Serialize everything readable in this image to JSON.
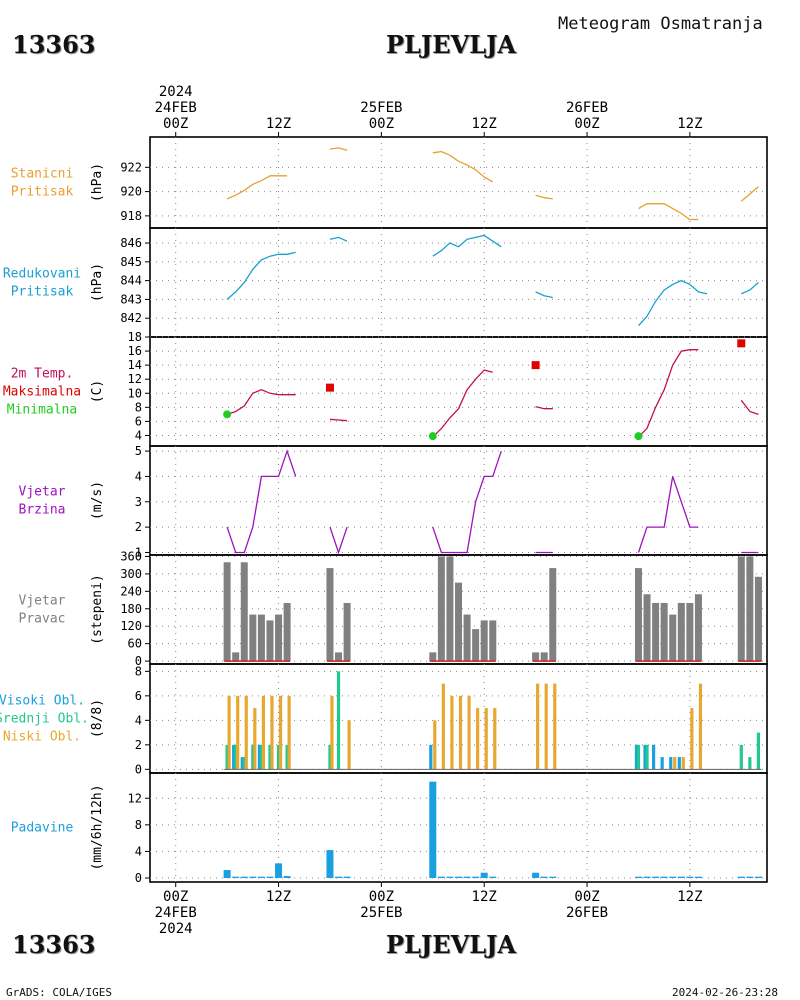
{
  "header": {
    "station_id": "13363",
    "station_name": "PLJEVLJA",
    "subtitle": "Meteogram Osmatranja"
  },
  "footer": {
    "left": "GrADS: COLA/IGES",
    "right": "2024-02-26-23:28"
  },
  "time_axis": {
    "year": "2024",
    "days": [
      {
        "label": "24FEB",
        "hour": 0
      },
      {
        "label": "25FEB",
        "hour": 24
      },
      {
        "label": "26FEB",
        "hour": 48
      }
    ],
    "ticks": [
      {
        "label": "00Z",
        "hour": 0
      },
      {
        "label": "12Z",
        "hour": 12
      },
      {
        "label": "00Z",
        "hour": 24
      },
      {
        "label": "12Z",
        "hour": 36
      },
      {
        "label": "00Z",
        "hour": 48
      },
      {
        "label": "12Z",
        "hour": 60
      }
    ],
    "range": [
      -3,
      69
    ]
  },
  "colors": {
    "pressure": "#e8a030",
    "reduced": "#1aa0d0",
    "temp": "#c0105a",
    "tmax": "#e00000",
    "tmin": "#20cc20",
    "wind": "#a010c0",
    "dir_bar": "#808080",
    "dir_base": "#d02020",
    "high_cloud": "#1aa0e0",
    "mid_cloud": "#20c890",
    "low_cloud": "#e8a830",
    "precip": "#1aa0e0"
  },
  "chart_data": [
    {
      "id": "station-pressure",
      "type": "line",
      "labels": [
        "Stanicni",
        "Pritisak"
      ],
      "unit": "(hPa)",
      "ylim": [
        917,
        924.5
      ],
      "yticks": [
        918,
        920,
        922
      ],
      "color_key": "pressure",
      "segments": [
        [
          [
            6,
            919.4
          ],
          [
            7,
            919.7
          ],
          [
            8,
            920.1
          ],
          [
            9,
            920.6
          ],
          [
            10,
            920.9
          ],
          [
            11,
            921.3
          ],
          [
            12,
            921.3
          ],
          [
            13,
            921.3
          ]
        ],
        [
          [
            18,
            923.5
          ],
          [
            19,
            923.6
          ],
          [
            20,
            923.4
          ]
        ],
        [
          [
            30,
            923.2
          ],
          [
            31,
            923.3
          ],
          [
            32,
            923.0
          ],
          [
            33,
            922.5
          ],
          [
            34,
            922.2
          ],
          [
            35,
            921.8
          ],
          [
            36,
            921.2
          ],
          [
            37,
            920.8
          ]
        ],
        [
          [
            42,
            919.7
          ],
          [
            43,
            919.5
          ],
          [
            44,
            919.4
          ]
        ],
        [
          [
            54,
            918.6
          ],
          [
            55,
            919.0
          ],
          [
            56,
            919.0
          ],
          [
            57,
            919.0
          ],
          [
            58,
            918.6
          ],
          [
            59,
            918.2
          ],
          [
            60,
            917.7
          ],
          [
            61,
            917.7
          ]
        ],
        [
          [
            66,
            919.2
          ],
          [
            67,
            919.8
          ],
          [
            68,
            920.4
          ]
        ]
      ]
    },
    {
      "id": "reduced-pressure",
      "type": "line",
      "labels": [
        "Redukovani",
        "Pritisak"
      ],
      "unit": "(hPa)",
      "ylim": [
        841,
        846.8
      ],
      "yticks": [
        842,
        843,
        844,
        845,
        846
      ],
      "color_key": "reduced",
      "segments": [
        [
          [
            6,
            843.0
          ],
          [
            7,
            843.4
          ],
          [
            8,
            843.9
          ],
          [
            9,
            844.6
          ],
          [
            10,
            845.1
          ],
          [
            11,
            845.3
          ],
          [
            12,
            845.4
          ],
          [
            13,
            845.4
          ],
          [
            14,
            845.5
          ]
        ],
        [
          [
            18,
            846.2
          ],
          [
            19,
            846.3
          ],
          [
            20,
            846.1
          ]
        ],
        [
          [
            30,
            845.3
          ],
          [
            31,
            845.6
          ],
          [
            32,
            846.0
          ],
          [
            33,
            845.8
          ],
          [
            34,
            846.2
          ],
          [
            35,
            846.3
          ],
          [
            36,
            846.4
          ],
          [
            37,
            846.1
          ],
          [
            38,
            845.8
          ]
        ],
        [
          [
            42,
            843.4
          ],
          [
            43,
            843.2
          ],
          [
            44,
            843.1
          ]
        ],
        [
          [
            54,
            841.6
          ],
          [
            55,
            842.1
          ],
          [
            56,
            842.9
          ],
          [
            57,
            843.5
          ],
          [
            58,
            843.8
          ],
          [
            59,
            844.0
          ],
          [
            60,
            843.8
          ],
          [
            61,
            843.4
          ],
          [
            62,
            843.3
          ]
        ],
        [
          [
            66,
            843.3
          ],
          [
            67,
            843.5
          ],
          [
            68,
            843.9
          ]
        ]
      ]
    },
    {
      "id": "temperature",
      "type": "line",
      "labels": [
        "2m Temp.",
        "Maksimalna",
        "Minimalna"
      ],
      "label_color_keys": [
        "temp",
        "tmax",
        "tmin"
      ],
      "unit": "(C)",
      "ylim": [
        2.5,
        18
      ],
      "yticks": [
        4,
        6,
        8,
        10,
        12,
        14,
        16,
        18
      ],
      "color_key": "temp",
      "segments": [
        [
          [
            6,
            7.0
          ],
          [
            7,
            7.4
          ],
          [
            8,
            8.2
          ],
          [
            9,
            10.0
          ],
          [
            10,
            10.5
          ],
          [
            11,
            10.0
          ],
          [
            12,
            9.8
          ],
          [
            13,
            9.8
          ],
          [
            14,
            9.8
          ]
        ],
        [
          [
            18,
            6.3
          ],
          [
            19,
            6.2
          ],
          [
            20,
            6.1
          ]
        ],
        [
          [
            30,
            3.8
          ],
          [
            31,
            5.0
          ],
          [
            32,
            6.5
          ],
          [
            33,
            7.8
          ],
          [
            34,
            10.5
          ],
          [
            35,
            12.0
          ],
          [
            36,
            13.3
          ],
          [
            37,
            13.0
          ]
        ],
        [
          [
            42,
            8.1
          ],
          [
            43,
            7.8
          ],
          [
            44,
            7.8
          ]
        ],
        [
          [
            54,
            3.8
          ],
          [
            55,
            5.0
          ],
          [
            56,
            8.0
          ],
          [
            57,
            10.5
          ],
          [
            58,
            14.0
          ],
          [
            59,
            16.0
          ],
          [
            60,
            16.2
          ],
          [
            61,
            16.2
          ]
        ],
        [
          [
            66,
            9.0
          ],
          [
            67,
            7.4
          ],
          [
            68,
            7.0
          ]
        ]
      ],
      "maxima": [
        [
          18,
          10.8
        ],
        [
          42,
          14.0
        ],
        [
          66,
          17.1
        ]
      ],
      "minima": [
        [
          6,
          7.0
        ],
        [
          30,
          3.9
        ],
        [
          54,
          3.9
        ]
      ]
    },
    {
      "id": "wind-speed",
      "type": "line",
      "labels": [
        "Vjetar",
        "Brzina"
      ],
      "unit": "(m/s)",
      "ylim": [
        0.9,
        5.2
      ],
      "yticks": [
        1,
        2,
        3,
        4,
        5
      ],
      "color_key": "wind",
      "segments": [
        [
          [
            6,
            2
          ],
          [
            7,
            1
          ],
          [
            8,
            1
          ],
          [
            9,
            2
          ],
          [
            10,
            4
          ],
          [
            11,
            4
          ],
          [
            12,
            4
          ],
          [
            13,
            5
          ],
          [
            14,
            4
          ]
        ],
        [
          [
            18,
            2
          ],
          [
            19,
            1
          ],
          [
            20,
            2
          ]
        ],
        [
          [
            30,
            2
          ],
          [
            31,
            1
          ],
          [
            32,
            1
          ],
          [
            33,
            1
          ],
          [
            34,
            1
          ],
          [
            35,
            3
          ],
          [
            36,
            4
          ],
          [
            37,
            4
          ],
          [
            38,
            5
          ]
        ],
        [
          [
            42,
            1
          ],
          [
            43,
            1
          ],
          [
            44,
            1
          ]
        ],
        [
          [
            54,
            1
          ],
          [
            55,
            2
          ],
          [
            56,
            2
          ],
          [
            57,
            2
          ],
          [
            58,
            4
          ],
          [
            59,
            3
          ],
          [
            60,
            2
          ],
          [
            61,
            2
          ]
        ],
        [
          [
            66,
            1
          ],
          [
            67,
            1
          ],
          [
            68,
            1
          ]
        ]
      ]
    },
    {
      "id": "wind-direction",
      "type": "bar",
      "labels": [
        "Vjetar",
        "Pravac"
      ],
      "unit": "(stepeni)",
      "ylim": [
        -10,
        365
      ],
      "yticks": [
        0,
        60,
        120,
        180,
        240,
        300,
        360
      ],
      "color_key": "dir_bar",
      "bars": [
        [
          6,
          340
        ],
        [
          7,
          30
        ],
        [
          8,
          340
        ],
        [
          9,
          160
        ],
        [
          10,
          160
        ],
        [
          11,
          140
        ],
        [
          12,
          160
        ],
        [
          13,
          200
        ],
        [
          18,
          320
        ],
        [
          19,
          30
        ],
        [
          20,
          200
        ],
        [
          30,
          30
        ],
        [
          31,
          360
        ],
        [
          32,
          360
        ],
        [
          33,
          270
        ],
        [
          34,
          160
        ],
        [
          35,
          110
        ],
        [
          36,
          140
        ],
        [
          37,
          140
        ],
        [
          42,
          30
        ],
        [
          43,
          30
        ],
        [
          44,
          320
        ],
        [
          54,
          320
        ],
        [
          55,
          230
        ],
        [
          56,
          200
        ],
        [
          57,
          200
        ],
        [
          58,
          160
        ],
        [
          59,
          200
        ],
        [
          60,
          200
        ],
        [
          61,
          230
        ],
        [
          66,
          360
        ],
        [
          67,
          360
        ],
        [
          68,
          290
        ]
      ]
    },
    {
      "id": "clouds",
      "type": "bar",
      "labels": [
        "Visoki Obl.",
        "Srednji Obl.",
        "Niski Obl."
      ],
      "label_color_keys": [
        "high_cloud",
        "mid_cloud",
        "low_cloud"
      ],
      "unit": "(8/8)",
      "ylim": [
        -0.3,
        8.6
      ],
      "yticks": [
        0,
        2,
        4,
        6,
        8
      ],
      "high": [
        [
          6,
          0
        ],
        [
          7,
          2
        ],
        [
          8,
          1
        ],
        [
          9,
          0
        ],
        [
          10,
          2
        ],
        [
          11,
          0
        ],
        [
          12,
          0
        ],
        [
          13,
          0
        ],
        [
          18,
          0
        ],
        [
          19,
          0
        ],
        [
          20,
          0
        ],
        [
          30,
          2
        ],
        [
          54,
          2
        ],
        [
          55,
          2
        ],
        [
          56,
          2
        ],
        [
          57,
          1
        ],
        [
          58,
          1
        ],
        [
          59,
          1
        ],
        [
          60,
          0
        ],
        [
          61,
          0
        ],
        [
          66,
          0
        ],
        [
          67,
          0
        ],
        [
          68,
          0
        ]
      ],
      "mid": [
        [
          6,
          2
        ],
        [
          7,
          2
        ],
        [
          8,
          1
        ],
        [
          9,
          2
        ],
        [
          10,
          2
        ],
        [
          11,
          2
        ],
        [
          12,
          2
        ],
        [
          13,
          2
        ],
        [
          18,
          2
        ],
        [
          19,
          8
        ],
        [
          20,
          0
        ],
        [
          30,
          0
        ],
        [
          54,
          2
        ],
        [
          55,
          2
        ],
        [
          56,
          0
        ],
        [
          57,
          0
        ],
        [
          58,
          0
        ],
        [
          59,
          0
        ],
        [
          60,
          0
        ],
        [
          61,
          0
        ],
        [
          66,
          2
        ],
        [
          67,
          1
        ],
        [
          68,
          3
        ]
      ],
      "low": [
        [
          6,
          6
        ],
        [
          7,
          6
        ],
        [
          8,
          6
        ],
        [
          9,
          5
        ],
        [
          10,
          6
        ],
        [
          11,
          6
        ],
        [
          12,
          6
        ],
        [
          13,
          6
        ],
        [
          18,
          6
        ],
        [
          19,
          0
        ],
        [
          20,
          4
        ],
        [
          30,
          4
        ],
        [
          31,
          7
        ],
        [
          32,
          6
        ],
        [
          33,
          6
        ],
        [
          34,
          6
        ],
        [
          35,
          5
        ],
        [
          36,
          5
        ],
        [
          37,
          5
        ],
        [
          42,
          7
        ],
        [
          43,
          7
        ],
        [
          44,
          7
        ],
        [
          54,
          0
        ],
        [
          55,
          0
        ],
        [
          56,
          0
        ],
        [
          57,
          0
        ],
        [
          58,
          1
        ],
        [
          59,
          1
        ],
        [
          60,
          5
        ],
        [
          61,
          7
        ]
      ]
    },
    {
      "id": "precipitation",
      "type": "bar",
      "labels": [
        "Padavine"
      ],
      "unit": "(mm/6h/12h)",
      "ylim": [
        -0.6,
        15.8
      ],
      "yticks": [
        0,
        4,
        8,
        12
      ],
      "color_key": "precip",
      "bars": [
        [
          6,
          1.2
        ],
        [
          7,
          0.2
        ],
        [
          8,
          0.2
        ],
        [
          9,
          0.2
        ],
        [
          10,
          0.2
        ],
        [
          11,
          0.2
        ],
        [
          12,
          2.2
        ],
        [
          13,
          0.3
        ],
        [
          18,
          4.2
        ],
        [
          19,
          0.2
        ],
        [
          20,
          0.2
        ],
        [
          30,
          14.5
        ],
        [
          31,
          0.2
        ],
        [
          32,
          0.2
        ],
        [
          33,
          0.2
        ],
        [
          34,
          0.2
        ],
        [
          35,
          0.2
        ],
        [
          36,
          0.8
        ],
        [
          37,
          0.2
        ],
        [
          42,
          0.8
        ],
        [
          43,
          0.2
        ],
        [
          44,
          0.2
        ],
        [
          54,
          0.2
        ],
        [
          55,
          0.2
        ],
        [
          56,
          0.2
        ],
        [
          57,
          0.2
        ],
        [
          58,
          0.2
        ],
        [
          59,
          0.2
        ],
        [
          60,
          0.2
        ],
        [
          61,
          0.2
        ],
        [
          66,
          0.2
        ],
        [
          67,
          0.2
        ],
        [
          68,
          0.2
        ]
      ]
    }
  ]
}
